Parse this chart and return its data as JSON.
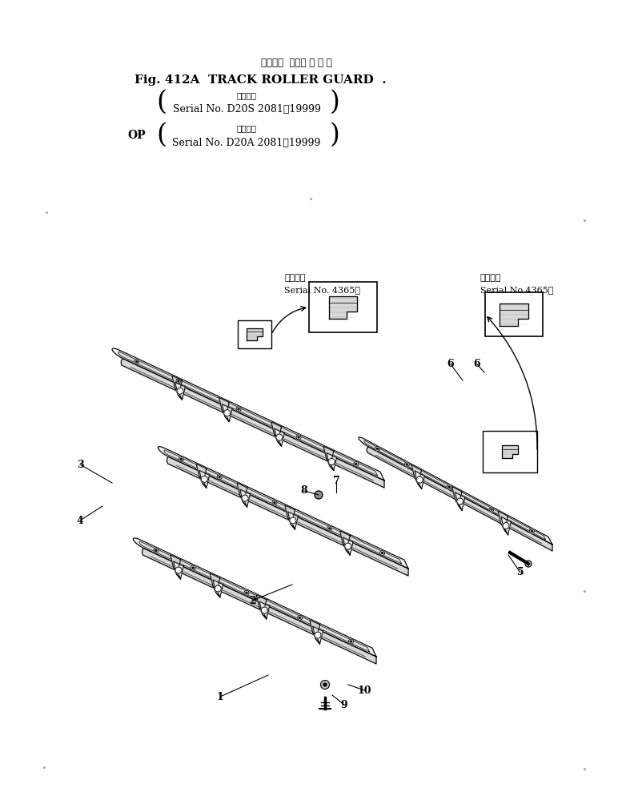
{
  "title_jp": "トラック  ローラ ガ ー ド",
  "title_en": "Fig. 412A  TRACK ROLLER GUARD  .",
  "serial1_jp": "適用号機",
  "serial1_en": "Serial No. D20S 2081～19999",
  "serial2_label": "OP",
  "serial2_jp": "適用号機",
  "serial2_en": "Serial No. D20A 2081～19999",
  "callout1_jp": "適用号機",
  "callout1_en": "Serial No. 4365～",
  "callout2_jp": "適用号機",
  "callout2_en": "Serial No.4365～",
  "bg_color": "#ffffff",
  "line_color": "#000000",
  "figsize": [
    7.77,
    9.94
  ],
  "dpi": 100
}
